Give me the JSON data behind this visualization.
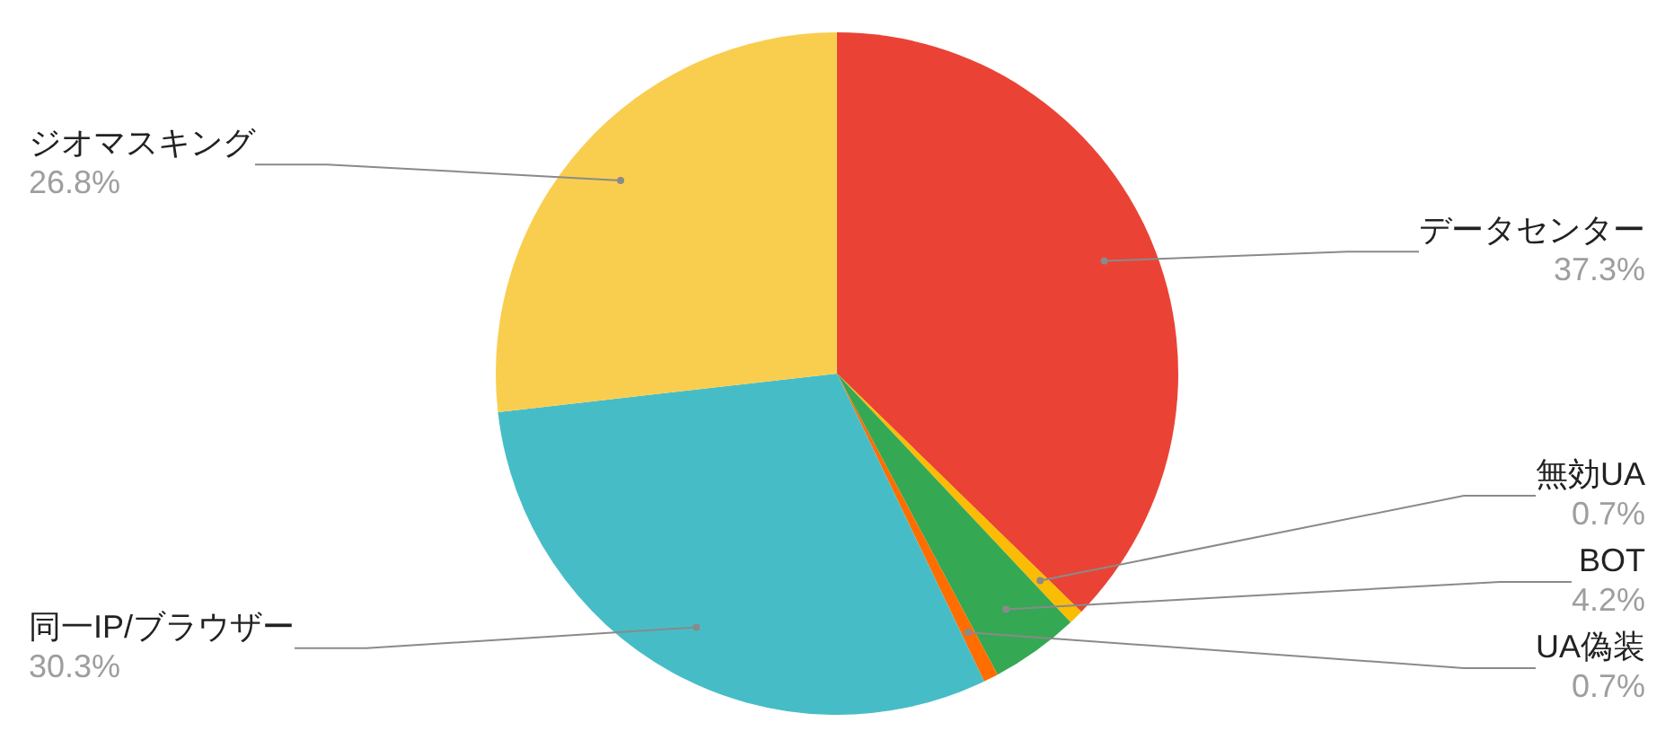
{
  "chart_data": {
    "type": "pie",
    "categories": [
      "データセンター",
      "無効UA",
      "BOT",
      "UA偽装",
      "同一IP/ブラウザー",
      "ジオマスキング"
    ],
    "values": [
      37.3,
      0.7,
      4.2,
      0.7,
      30.3,
      26.8
    ],
    "value_labels": [
      "37.3%",
      "0.7%",
      "4.2%",
      "0.7%",
      "30.3%",
      "26.8%"
    ],
    "colors": [
      "#ea4335",
      "#fbbc04",
      "#34a853",
      "#ff6d01",
      "#46bdc6",
      "#f9ce4f"
    ],
    "legend": false
  }
}
